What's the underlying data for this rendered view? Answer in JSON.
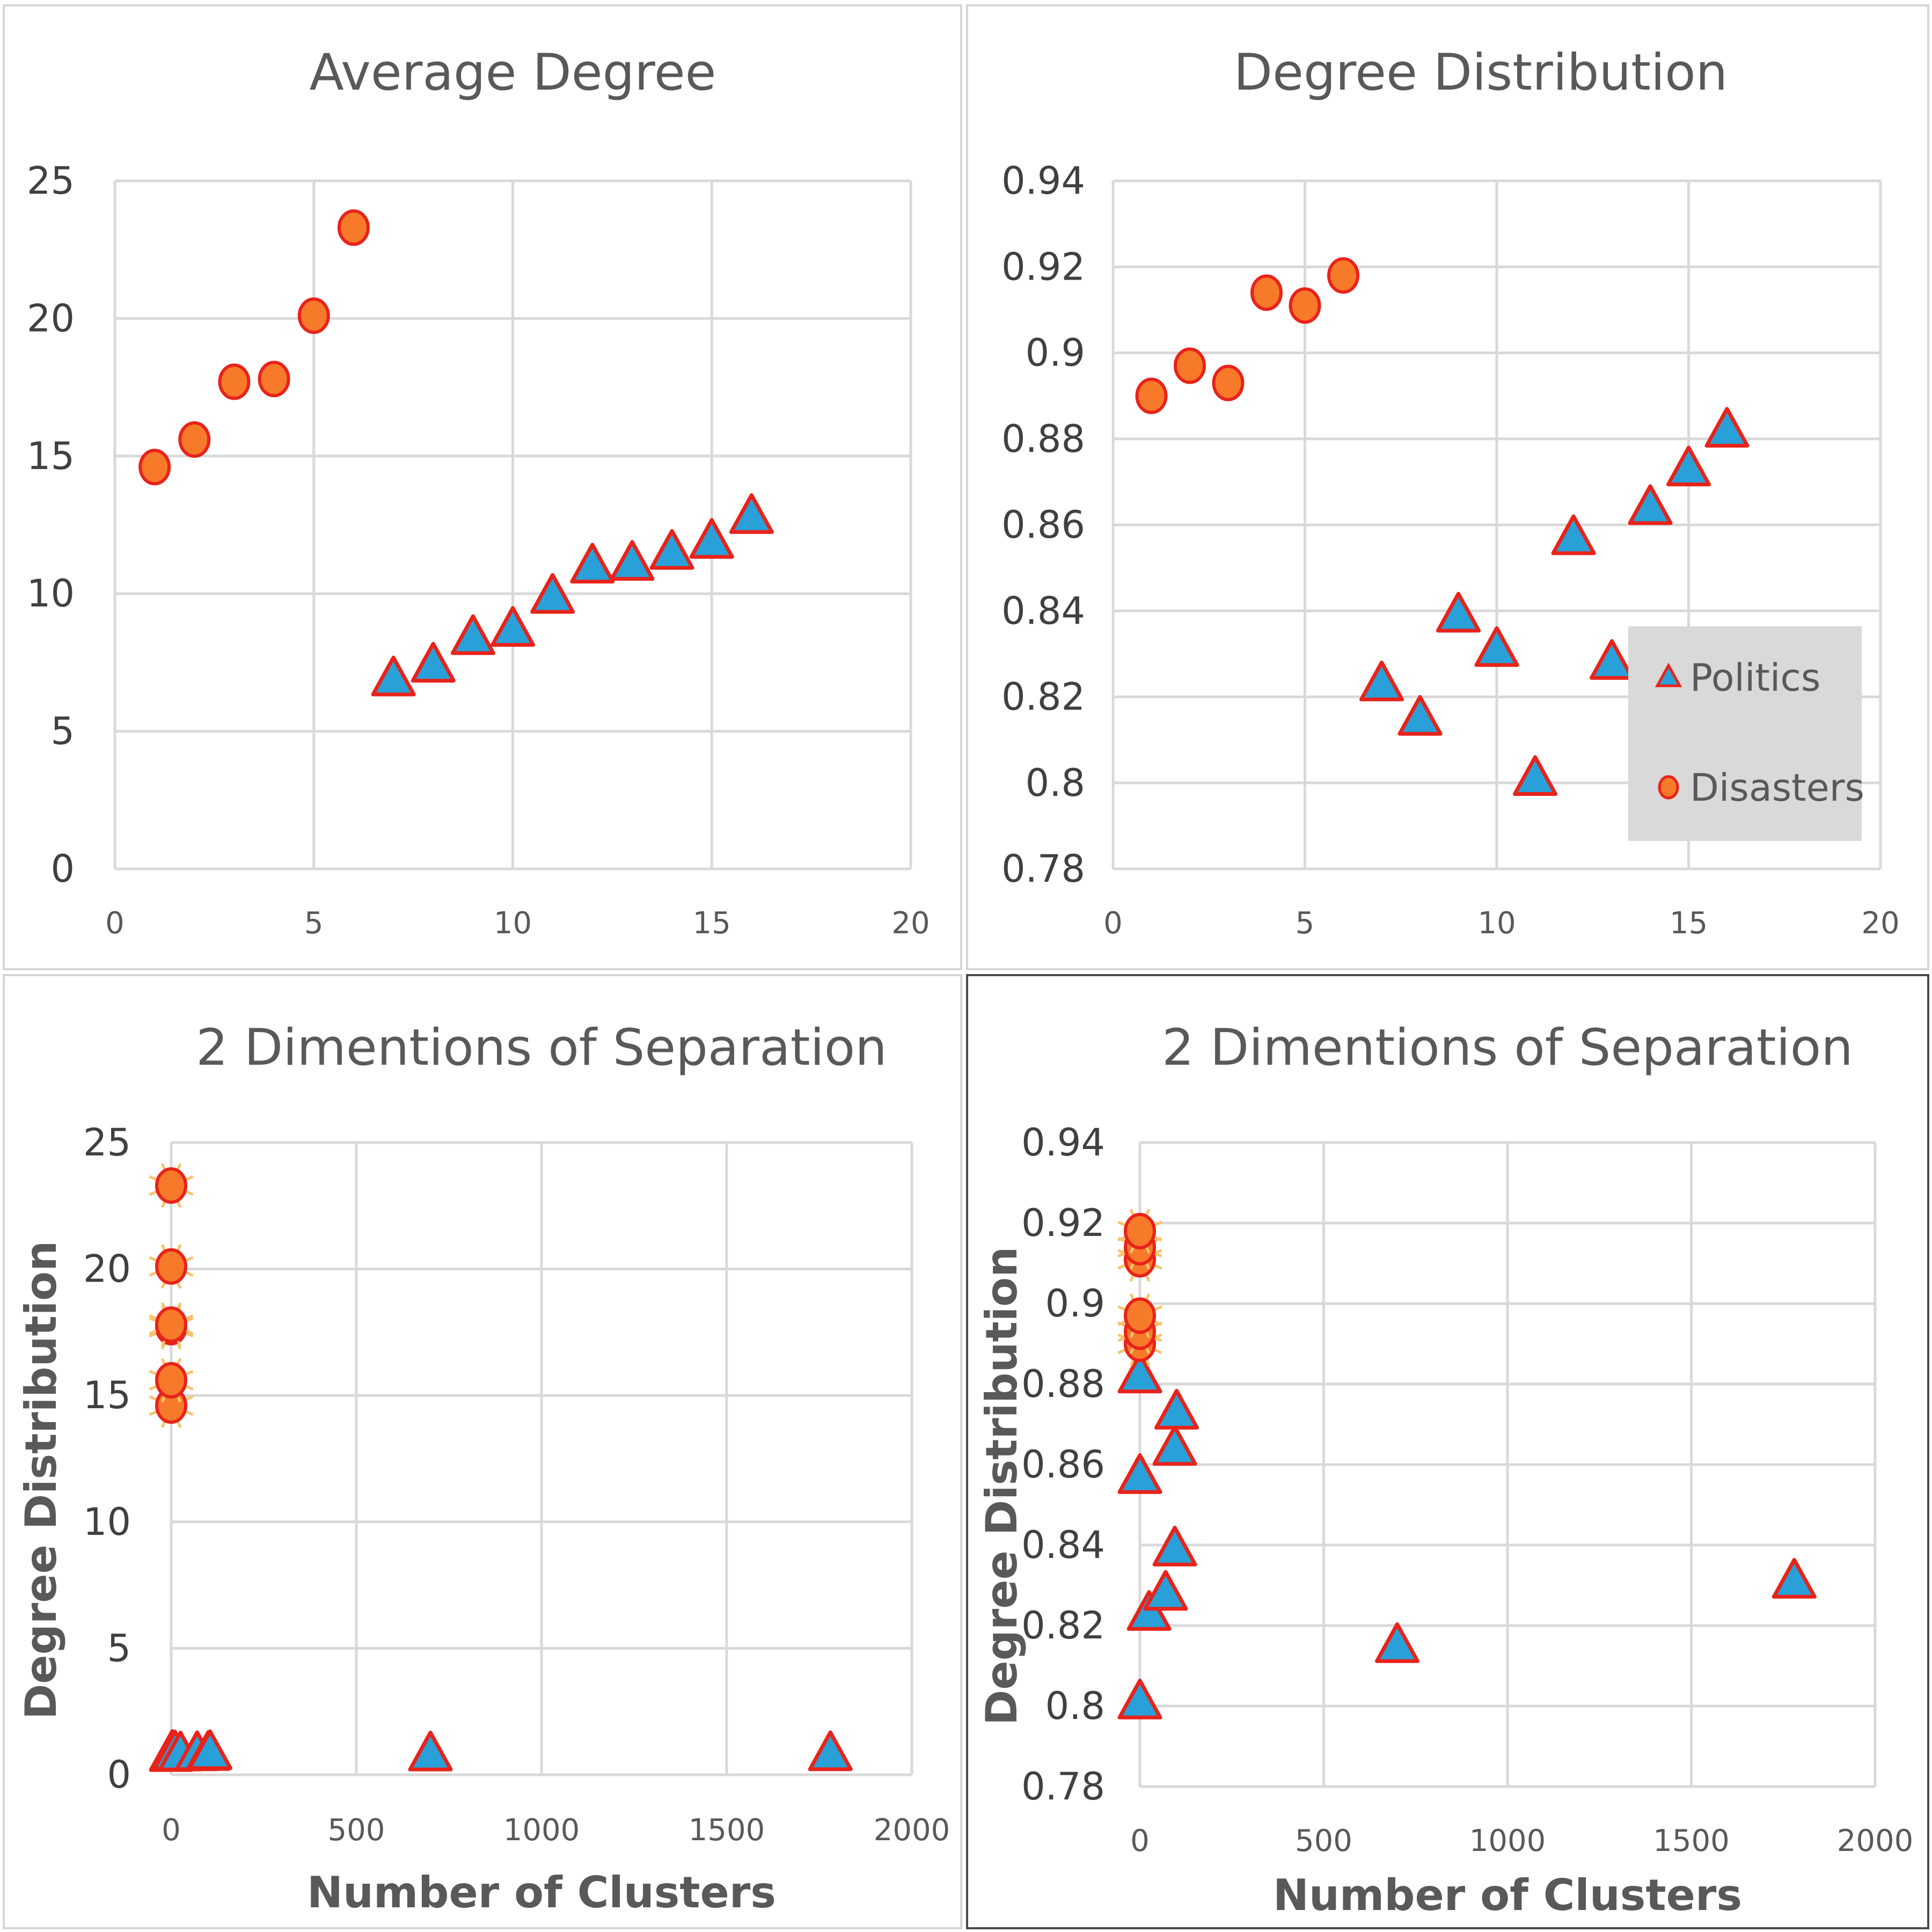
{
  "colors": {
    "politics_fill": "#2aa0d8",
    "politics_edge": "#e8231a",
    "disasters_fill": "#f7792a",
    "disasters_edge": "#e8231a",
    "grid": "#d9d9d9",
    "legend_bg": "#d9d9d9",
    "marker_halo": "#f9c36b"
  },
  "chart_data": [
    {
      "type": "scatter",
      "title": "Average Degree",
      "xlabel": "",
      "ylabel": "",
      "xlim": [
        0,
        20
      ],
      "ylim": [
        0,
        25
      ],
      "xticks": [
        0,
        5,
        10,
        15,
        20
      ],
      "yticks": [
        0,
        5,
        10,
        15,
        20,
        25
      ],
      "xtick_labels": [
        "0",
        "5",
        "10",
        "15",
        "20"
      ],
      "ytick_labels": [
        "0",
        "5",
        "10",
        "15",
        "20",
        "25"
      ],
      "grid": true,
      "legend": "none",
      "series": [
        {
          "key": "politics",
          "marker": "triangle",
          "x": [
            7,
            8,
            9,
            10,
            11,
            12,
            13,
            14,
            15,
            16
          ],
          "y": [
            6.9,
            7.4,
            8.4,
            8.7,
            9.9,
            11.0,
            11.1,
            11.5,
            11.9,
            12.8
          ]
        },
        {
          "key": "disasters",
          "marker": "circle",
          "x": [
            1,
            2,
            3,
            4,
            5,
            6
          ],
          "y": [
            14.6,
            15.6,
            17.7,
            17.8,
            20.1,
            23.3
          ]
        }
      ]
    },
    {
      "type": "scatter",
      "title": "Degree Distribution",
      "xlabel": "",
      "ylabel": "",
      "xlim": [
        0,
        20
      ],
      "ylim": [
        0.78,
        0.94
      ],
      "xticks": [
        0,
        5,
        10,
        15,
        20
      ],
      "yticks": [
        0.78,
        0.8,
        0.82,
        0.84,
        0.86,
        0.88,
        0.9,
        0.92,
        0.94
      ],
      "xtick_labels": [
        "0",
        "5",
        "10",
        "15",
        "20"
      ],
      "ytick_labels": [
        "0.78",
        "0.8",
        "0.82",
        "0.84",
        "0.86",
        "0.88",
        "0.9",
        "0.92",
        "0.94"
      ],
      "grid": true,
      "legend": "right",
      "series": [
        {
          "key": "politics",
          "name": "Politics",
          "marker": "triangle",
          "x": [
            7,
            8,
            9,
            10,
            11,
            12,
            13,
            14,
            15,
            16
          ],
          "y": [
            0.823,
            0.815,
            0.839,
            0.831,
            0.801,
            0.857,
            0.828,
            0.864,
            0.873,
            0.882
          ]
        },
        {
          "key": "disasters",
          "name": "Disasters",
          "marker": "circle",
          "x": [
            1,
            2,
            3,
            4,
            5,
            6
          ],
          "y": [
            0.89,
            0.897,
            0.893,
            0.914,
            0.911,
            0.918
          ]
        }
      ]
    },
    {
      "type": "scatter",
      "title": "2 Dimentions of Separation",
      "xlabel": "Number of Clusters",
      "ylabel": "Degree Distribution",
      "xlim": [
        0,
        2000
      ],
      "ylim": [
        0,
        25
      ],
      "xticks": [
        0,
        500,
        1000,
        1500,
        2000
      ],
      "yticks": [
        0,
        5,
        10,
        15,
        20,
        25
      ],
      "xtick_labels": [
        "0",
        "500",
        "1000",
        "1500",
        "2000"
      ],
      "ytick_labels": [
        "0",
        "5",
        "10",
        "15",
        "20",
        "25"
      ],
      "grid": true,
      "legend": "none",
      "series": [
        {
          "key": "politics",
          "marker": "triangle",
          "x": [
            0,
            3,
            10,
            25,
            70,
            100,
            105,
            700,
            1780
          ],
          "y": [
            0.8,
            0.88,
            0.86,
            0.82,
            0.83,
            0.84,
            0.87,
            0.82,
            0.83
          ]
        },
        {
          "key": "disasters",
          "marker": "circle",
          "x": [
            0,
            0,
            0,
            0,
            0,
            0
          ],
          "y": [
            14.6,
            15.6,
            17.7,
            17.8,
            20.1,
            23.3
          ]
        }
      ]
    },
    {
      "type": "scatter",
      "title": "2 Dimentions of Separation",
      "xlabel": "Number of Clusters",
      "ylabel": "Degree Distribution",
      "xlim": [
        0,
        2000
      ],
      "ylim": [
        0.78,
        0.94
      ],
      "xticks": [
        0,
        500,
        1000,
        1500,
        2000
      ],
      "yticks": [
        0.78,
        0.8,
        0.82,
        0.84,
        0.86,
        0.88,
        0.9,
        0.92,
        0.94
      ],
      "xtick_labels": [
        "0",
        "500",
        "1000",
        "1500",
        "2000"
      ],
      "ytick_labels": [
        "0.78",
        "0.8",
        "0.82",
        "0.84",
        "0.86",
        "0.88",
        "0.9",
        "0.92",
        "0.94"
      ],
      "grid": true,
      "legend": "none",
      "series": [
        {
          "key": "politics",
          "marker": "triangle",
          "x": [
            0,
            0,
            0,
            25,
            70,
            95,
            95,
            100,
            700,
            1780
          ],
          "y": [
            0.801,
            0.857,
            0.882,
            0.823,
            0.828,
            0.839,
            0.864,
            0.873,
            0.815,
            0.831
          ]
        },
        {
          "key": "disasters",
          "marker": "circle",
          "x": [
            0,
            0,
            0,
            0,
            0,
            0
          ],
          "y": [
            0.89,
            0.893,
            0.897,
            0.911,
            0.914,
            0.918
          ]
        }
      ]
    }
  ]
}
